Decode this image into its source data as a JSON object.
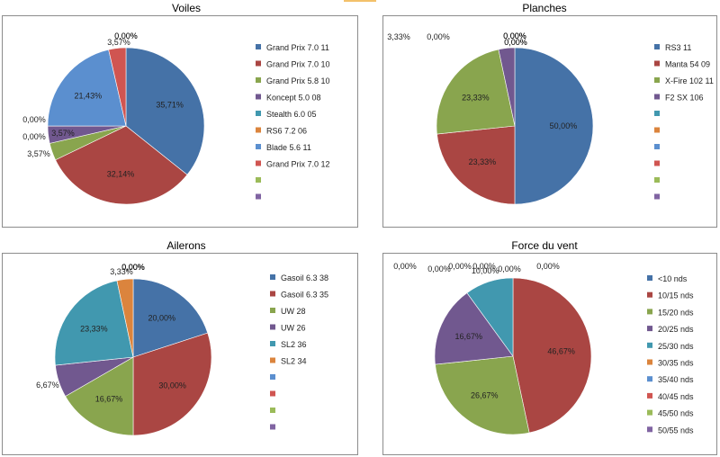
{
  "colors": [
    "#4572a7",
    "#aa4643",
    "#89a54e",
    "#71588f",
    "#4198af",
    "#db843d",
    "#5b8fcf",
    "#d05551",
    "#9bbb59",
    "#8064a2"
  ],
  "chart_data": [
    {
      "type": "pie",
      "title": "Voiles",
      "legend": [
        "Grand Prix 7.0 11",
        "Grand Prix 7.0 10",
        "Grand Prix 5.8 10",
        "Koncept 5.0 08",
        "Stealth 6.0 05",
        "RS6 7.2 06",
        "Blade 5.6 11",
        "Grand Prix 7.0 12",
        "",
        ""
      ],
      "values": [
        35.71,
        32.14,
        3.57,
        3.57,
        0.0,
        0.0,
        21.43,
        3.57,
        0.0,
        0.0
      ],
      "labels": [
        "35,71%",
        "32,14%",
        "3,57%",
        "3,57%",
        "0,00%",
        "0,00%",
        "21,43%",
        "3,57%",
        "0,00%",
        "0,00%"
      ],
      "legend_placement": "right"
    },
    {
      "type": "pie",
      "title": "Planches",
      "legend": [
        "RS3 11",
        "Manta 54 09",
        "X-Fire 102 11",
        "F2 SX 106",
        "",
        "",
        "",
        "",
        "",
        ""
      ],
      "values": [
        50.0,
        23.33,
        23.33,
        3.33,
        0,
        0,
        0,
        0,
        0,
        0
      ],
      "labels": [
        "50,00%",
        "23,33%",
        "23,33%",
        "3,33%",
        "0,00%",
        "0,00%",
        "0,00%",
        "0,00%",
        "0,00%",
        "0,00%"
      ],
      "legend_placement": "right"
    },
    {
      "type": "pie",
      "title": "Ailerons",
      "legend": [
        "Gasoil 6.3 38",
        "Gasoil 6.3 35",
        "UW 28",
        "UW 26",
        "SL2 36",
        "SL2 34",
        "",
        "",
        "",
        ""
      ],
      "values": [
        20.0,
        30.0,
        16.67,
        6.67,
        23.33,
        3.33,
        0,
        0,
        0,
        0
      ],
      "labels": [
        "20,00%",
        "30,00%",
        "16,67%",
        "6,67%",
        "23,33%",
        "3,33%",
        "0,00%",
        "0,00%",
        "0,00%",
        "0,00%"
      ],
      "legend_placement": "right"
    },
    {
      "type": "pie",
      "title": "Force du vent",
      "legend": [
        "<10 nds",
        "10/15 nds",
        "15/20 nds",
        "20/25 nds",
        "25/30 nds",
        "30/35 nds",
        "35/40 nds",
        "40/45 nds",
        "45/50 nds",
        "50/55 nds"
      ],
      "values": [
        0.0,
        46.67,
        26.67,
        16.67,
        10.0,
        0.0,
        0,
        0,
        0,
        0
      ],
      "labels": [
        "0,00%",
        "46,67%",
        "26,67%",
        "16,67%",
        "10,00%",
        "0,00%",
        "0,00%",
        "0,00%",
        "0,00%",
        "0,00%"
      ],
      "legend_placement": "right"
    }
  ]
}
